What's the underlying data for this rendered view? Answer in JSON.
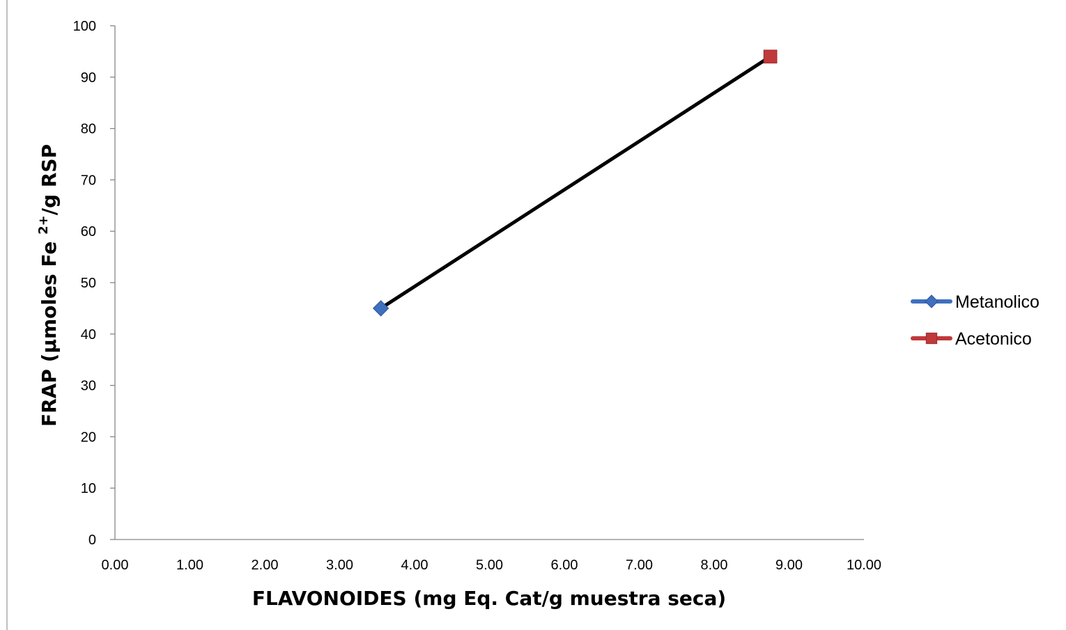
{
  "chart_data": {
    "type": "scatter",
    "title": "",
    "xlabel": "FLAVONOIDES (mg Eq. Cat/g muestra seca)",
    "ylabel_parts": {
      "before": "FRAP (µmoles Fe ",
      "sup": "2+",
      "after": "/g RSP"
    },
    "xlim": [
      0,
      10
    ],
    "ylim": [
      0,
      100
    ],
    "x_ticks": [
      "0.00",
      "1.00",
      "2.00",
      "3.00",
      "4.00",
      "5.00",
      "6.00",
      "7.00",
      "8.00",
      "9.00",
      "10.00"
    ],
    "y_ticks": [
      "0",
      "10",
      "20",
      "30",
      "40",
      "50",
      "60",
      "70",
      "80",
      "90",
      "100"
    ],
    "series": [
      {
        "name": "Metanolico",
        "x": 3.55,
        "y": 45,
        "color": "#3F6FBF",
        "marker": "diamond"
      },
      {
        "name": "Acetonico",
        "x": 8.75,
        "y": 94,
        "color": "#C0393B",
        "marker": "square"
      }
    ],
    "trendline": {
      "from": [
        3.55,
        45
      ],
      "to": [
        8.75,
        94
      ],
      "color": "#000000"
    },
    "grid": false,
    "legend_position": "right"
  }
}
